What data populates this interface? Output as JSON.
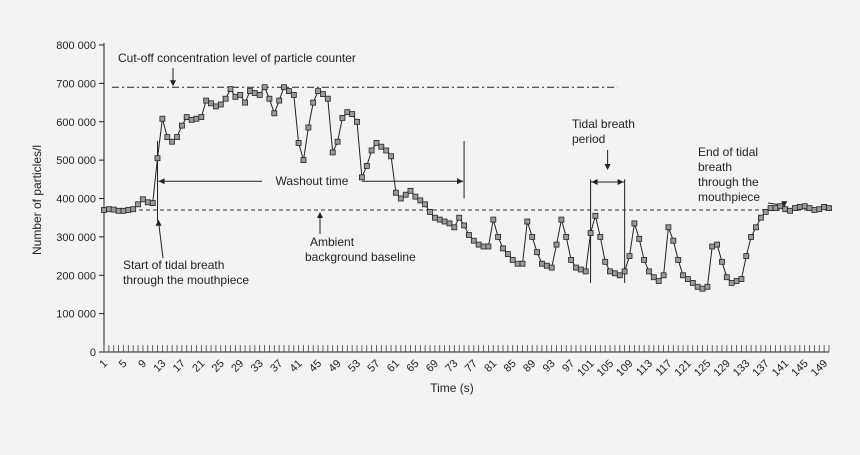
{
  "chart_data": {
    "type": "line",
    "xlabel": "Time (s)",
    "ylabel": "Number of particles/l",
    "ylim": [
      0,
      800000
    ],
    "y_ticks": [
      {
        "value": 0,
        "label": "0"
      },
      {
        "value": 100000,
        "label": "100 000"
      },
      {
        "value": 200000,
        "label": "200 000"
      },
      {
        "value": 300000,
        "label": "300 000"
      },
      {
        "value": 400000,
        "label": "400 000"
      },
      {
        "value": 500000,
        "label": "500 000"
      },
      {
        "value": 600000,
        "label": "600 000"
      },
      {
        "value": 700000,
        "label": "700 000"
      },
      {
        "value": 800000,
        "label": "800 000"
      }
    ],
    "x_tick_labels": [
      "1",
      "5",
      "9",
      "13",
      "17",
      "21",
      "25",
      "29",
      "33",
      "37",
      "41",
      "45",
      "49",
      "53",
      "57",
      "61",
      "65",
      "69",
      "73",
      "77",
      "81",
      "85",
      "89",
      "93",
      "97",
      "101",
      "105",
      "109",
      "113",
      "117",
      "121",
      "125",
      "129",
      "133",
      "137",
      "141",
      "145",
      "149"
    ],
    "x_range": [
      1,
      150
    ],
    "series": [
      {
        "marker": "square",
        "x": [
          1,
          2,
          3,
          4,
          5,
          6,
          7,
          8,
          9,
          10,
          11,
          12,
          13,
          14,
          15,
          16,
          17,
          18,
          19,
          20,
          21,
          22,
          23,
          24,
          25,
          26,
          27,
          28,
          29,
          30,
          31,
          32,
          33,
          34,
          35,
          36,
          37,
          38,
          39,
          40,
          41,
          42,
          43,
          44,
          45,
          46,
          47,
          48,
          49,
          50,
          51,
          52,
          53,
          54,
          55,
          56,
          57,
          58,
          59,
          60,
          61,
          62,
          63,
          64,
          65,
          66,
          67,
          68,
          69,
          70,
          71,
          72,
          73,
          74,
          75,
          76,
          77,
          78,
          79,
          80,
          81,
          82,
          83,
          84,
          85,
          86,
          87,
          88,
          89,
          90,
          91,
          92,
          93,
          94,
          95,
          96,
          97,
          98,
          99,
          100,
          101,
          102,
          103,
          104,
          105,
          106,
          107,
          108,
          109,
          110,
          111,
          112,
          113,
          114,
          115,
          116,
          117,
          118,
          119,
          120,
          121,
          122,
          123,
          124,
          125,
          126,
          127,
          128,
          129,
          130,
          131,
          132,
          133,
          134,
          135,
          136,
          137,
          138,
          139,
          140,
          141,
          142,
          143,
          144,
          145,
          146,
          147,
          148,
          149,
          150
        ],
        "values": [
          370000,
          372000,
          371000,
          368000,
          368000,
          370000,
          372000,
          385000,
          398000,
          390000,
          388000,
          505000,
          608000,
          560000,
          548000,
          560000,
          590000,
          612000,
          605000,
          608000,
          612000,
          655000,
          648000,
          640000,
          645000,
          660000,
          685000,
          665000,
          670000,
          650000,
          680000,
          675000,
          670000,
          690000,
          660000,
          622000,
          655000,
          690000,
          680000,
          670000,
          545000,
          500000,
          585000,
          650000,
          680000,
          672000,
          660000,
          520000,
          548000,
          610000,
          625000,
          620000,
          600000,
          455000,
          485000,
          525000,
          545000,
          535000,
          525000,
          510000,
          415000,
          400000,
          410000,
          420000,
          405000,
          395000,
          385000,
          365000,
          350000,
          345000,
          340000,
          335000,
          325000,
          350000,
          330000,
          305000,
          290000,
          280000,
          275000,
          275000,
          345000,
          300000,
          270000,
          255000,
          240000,
          230000,
          230000,
          340000,
          300000,
          260000,
          230000,
          225000,
          220000,
          280000,
          345000,
          300000,
          240000,
          220000,
          215000,
          210000,
          310000,
          355000,
          300000,
          235000,
          210000,
          205000,
          200000,
          210000,
          250000,
          335000,
          295000,
          240000,
          210000,
          195000,
          185000,
          200000,
          325000,
          290000,
          240000,
          200000,
          190000,
          180000,
          170000,
          165000,
          170000,
          275000,
          280000,
          235000,
          195000,
          180000,
          185000,
          190000,
          250000,
          300000,
          325000,
          350000,
          365000,
          375000,
          375000,
          380000,
          372000,
          368000,
          375000,
          378000,
          380000,
          375000,
          370000,
          372000,
          378000,
          375000
        ]
      }
    ],
    "reference_lines": {
      "cutoff": {
        "value": 690000,
        "style": "dash-dot",
        "label": "Cut-off concentration level of particle counter"
      },
      "baseline": {
        "value": 370000,
        "style": "dashed",
        "label": "Ambient background baseline"
      }
    },
    "annotations": {
      "washout": {
        "label": "Washout time",
        "x_start": 12,
        "x_end": 75,
        "y": 445000
      },
      "start_tidal": {
        "label": "Start of tidal breath through the mouthpiece",
        "x": 12
      },
      "tidal_period": {
        "label": "Tidal breath period",
        "x_start": 101,
        "x_end": 108
      },
      "end_tidal": {
        "label": "End of tidal breath through the mouthpiece",
        "x": 141
      }
    },
    "grid": false,
    "legend": "none"
  }
}
